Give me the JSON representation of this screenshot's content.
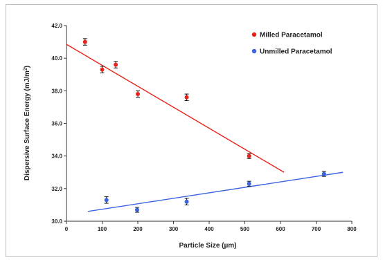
{
  "chart_data": {
    "type": "scatter",
    "xlabel": "Particle Size (µm)",
    "ylabel_main": "Dispersive Surface Energy (mJ/m",
    "ylabel_sup": "2",
    "ylabel_close": ")",
    "xlim": [
      0,
      800
    ],
    "ylim": [
      30.0,
      42.0
    ],
    "x_ticks": [
      "0",
      "100",
      "200",
      "300",
      "400",
      "500",
      "600",
      "700",
      "800"
    ],
    "y_ticks": [
      "30.0",
      "32.0",
      "34.0",
      "36.0",
      "38.0",
      "40.0",
      "42.0"
    ],
    "grid": false,
    "legend_position": "top-right",
    "series": [
      {
        "name": "Milled Paracetamol",
        "color": "#e8221b",
        "points": [
          {
            "x": 52,
            "y": 41.0,
            "err": 0.2
          },
          {
            "x": 100,
            "y": 39.3,
            "err": 0.2
          },
          {
            "x": 138,
            "y": 39.6,
            "err": 0.2
          },
          {
            "x": 200,
            "y": 37.8,
            "err": 0.2
          },
          {
            "x": 337,
            "y": 37.6,
            "err": 0.2
          },
          {
            "x": 512,
            "y": 34.0,
            "err": 0.15
          }
        ],
        "trendline": [
          [
            0,
            40.85
          ],
          [
            610,
            33.0
          ]
        ]
      },
      {
        "name": "Unmilled Paracetamol",
        "color": "#3b63e0",
        "points": [
          {
            "x": 112,
            "y": 31.3,
            "err": 0.2
          },
          {
            "x": 198,
            "y": 30.7,
            "err": 0.15
          },
          {
            "x": 337,
            "y": 31.2,
            "err": 0.2
          },
          {
            "x": 512,
            "y": 32.3,
            "err": 0.15
          },
          {
            "x": 722,
            "y": 32.9,
            "err": 0.15
          }
        ],
        "trendline": [
          [
            60,
            30.6
          ],
          [
            775,
            33.0
          ]
        ]
      }
    ]
  }
}
